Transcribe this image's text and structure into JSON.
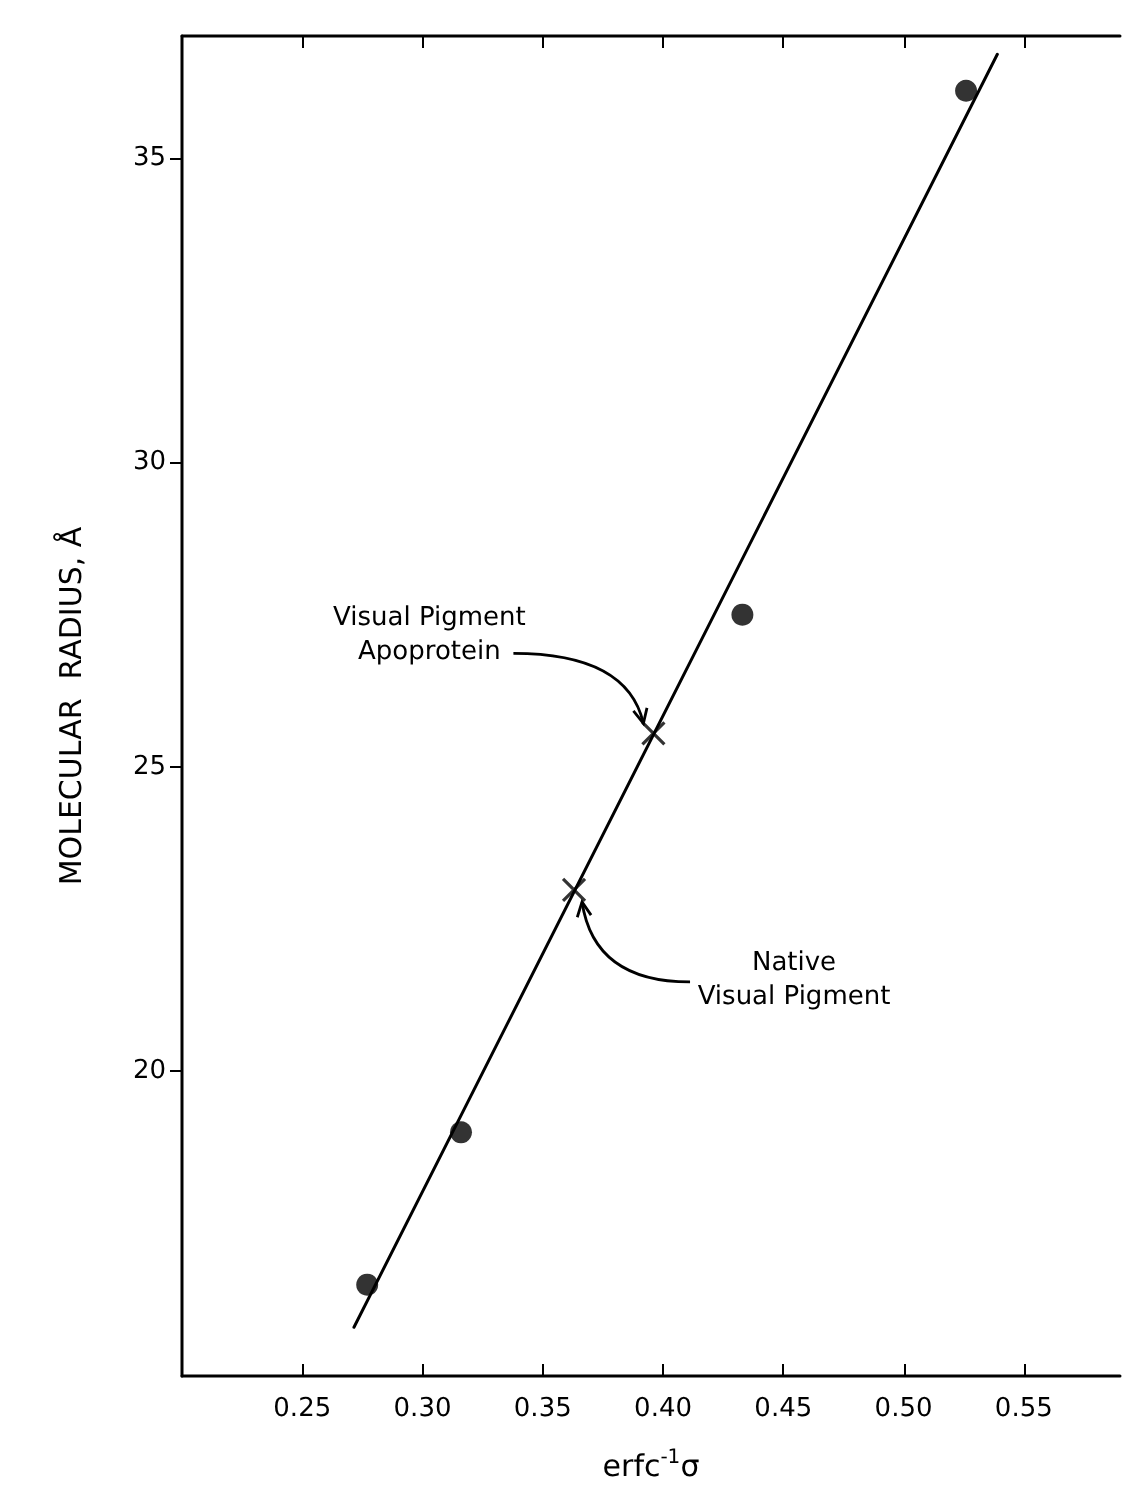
{
  "chart_data": {
    "type": "scatter",
    "xlabel": "erfc$^{-1}$σ",
    "ylabel": "MOLECULAR  RADIUS, Å",
    "xlim": [
      0.2,
      0.59
    ],
    "xticks": [
      0.25,
      {
        "value": 0.3,
        "label": "0.30"
      },
      0.35,
      {
        "value": 0.4,
        "label": "0.40"
      },
      0.45,
      {
        "value": 0.5,
        "label": "0.50"
      },
      0.55
    ],
    "ylim": [
      15,
      37
    ],
    "yticks": [
      20,
      25,
      30,
      35
    ],
    "grid": false,
    "series": [
      {
        "marker": "circle",
        "color": "#000000",
        "x": [
          0.277,
          0.316,
          0.433,
          0.526
        ],
        "values": [
          16.5,
          19.0,
          27.5,
          36.1
        ]
      },
      {
        "marker": "cross",
        "color": "#000000",
        "x": [
          0.396,
          0.363
        ],
        "values": [
          25.55,
          22.98
        ]
      },
      {
        "type": "line",
        "marker": "none",
        "line_style": "solid",
        "color": "#000000",
        "x": [
          0.2715,
          0.539
        ],
        "values": [
          15.8,
          36.7
        ]
      }
    ],
    "annotations": [
      {
        "text": "Visual Pigment\nApoprotein",
        "x": 0.396,
        "y": 25.55
      },
      {
        "text": "Native\nVisual Pigment",
        "x": 0.363,
        "y": 22.98
      }
    ]
  }
}
